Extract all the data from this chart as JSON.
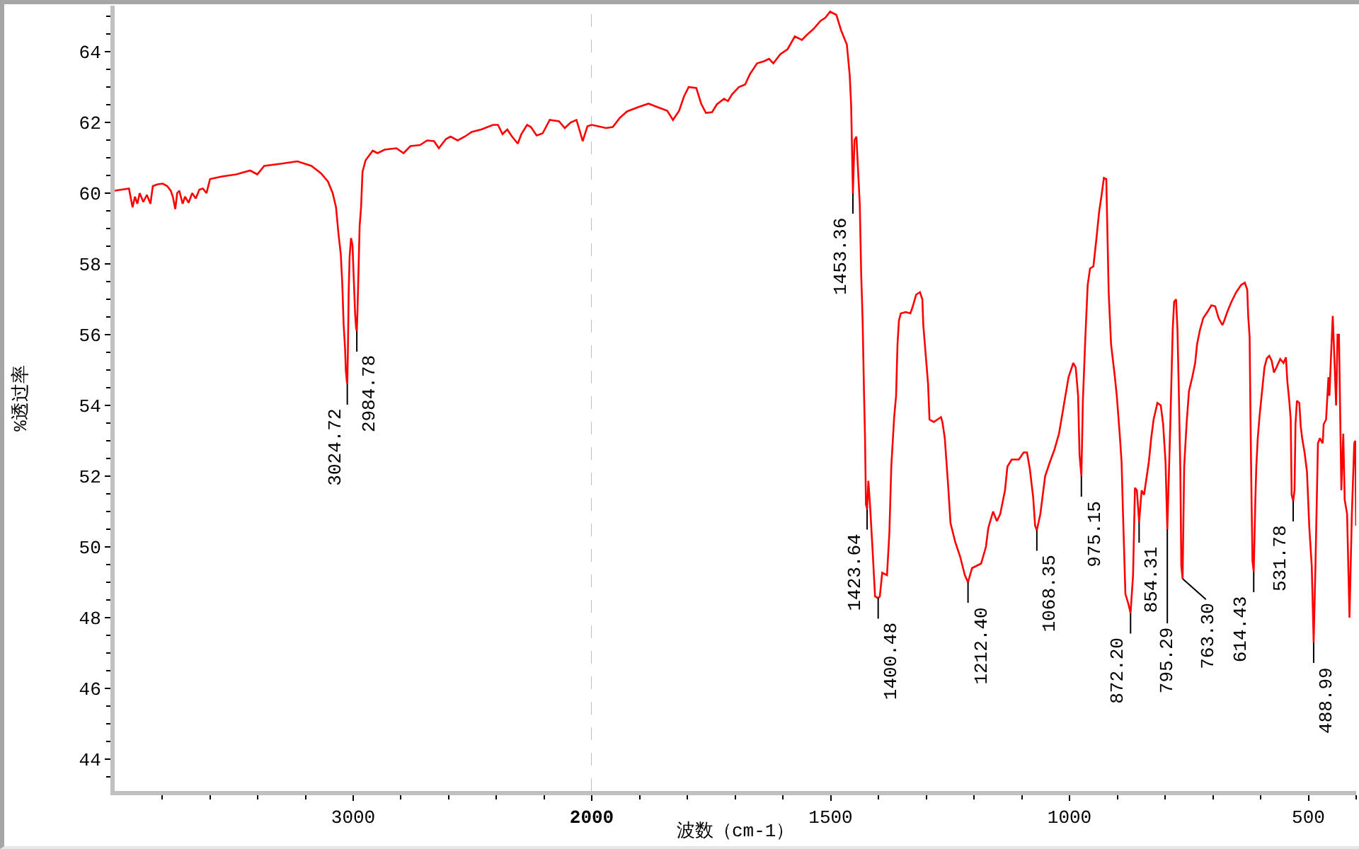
{
  "chart_data": [
    {
      "type": "line",
      "ylabel": "%透过率",
      "xlim": [
        4000,
        2000
      ],
      "ylim": [
        43.1,
        65.3
      ],
      "xticks": [
        {
          "value": 3800,
          "label": null
        },
        {
          "value": 3600,
          "label": null
        },
        {
          "value": 3400,
          "label": null
        },
        {
          "value": 3200,
          "label": null
        },
        3000,
        {
          "value": 2800,
          "label": null
        },
        {
          "value": 2600,
          "label": null
        },
        {
          "value": 2400,
          "label": null
        },
        {
          "value": 2200,
          "label": null
        },
        2000
      ],
      "yticks": [
        {
          "value": 43.5,
          "label": null
        },
        44,
        {
          "value": 44.5,
          "label": null
        },
        {
          "value": 45,
          "label": null
        },
        {
          "value": 45.5,
          "label": null
        },
        46,
        {
          "value": 46.5,
          "label": null
        },
        {
          "value": 47,
          "label": null
        },
        {
          "value": 47.5,
          "label": null
        },
        48,
        {
          "value": 48.5,
          "label": null
        },
        {
          "value": 49,
          "label": null
        },
        {
          "value": 49.5,
          "label": null
        },
        50,
        {
          "value": 50.5,
          "label": null
        },
        {
          "value": 51,
          "label": null
        },
        {
          "value": 51.5,
          "label": null
        },
        52,
        {
          "value": 52.5,
          "label": null
        },
        {
          "value": 53,
          "label": null
        },
        {
          "value": 53.5,
          "label": null
        },
        54,
        {
          "value": 54.5,
          "label": null
        },
        {
          "value": 55,
          "label": null
        },
        {
          "value": 55.5,
          "label": null
        },
        56,
        {
          "value": 56.5,
          "label": null
        },
        {
          "value": 57,
          "label": null
        },
        {
          "value": 57.5,
          "label": null
        },
        58,
        {
          "value": 58.5,
          "label": null
        },
        {
          "value": 59,
          "label": null
        },
        {
          "value": 59.5,
          "label": null
        },
        60,
        {
          "value": 60.5,
          "label": null
        },
        {
          "value": 61,
          "label": null
        },
        {
          "value": 61.5,
          "label": null
        },
        62,
        {
          "value": 62.5,
          "label": null
        },
        {
          "value": 63,
          "label": null
        },
        {
          "value": 63.5,
          "label": null
        },
        64,
        {
          "value": 64.5,
          "label": null
        },
        {
          "value": 65,
          "label": null
        }
      ],
      "series": [
        {
          "color": "#ff0000",
          "x": [
            4000,
            3970,
            3940,
            3925,
            3915,
            3905,
            3895,
            3880,
            3865,
            3850,
            3840,
            3820,
            3798,
            3780,
            3765,
            3756,
            3746,
            3738,
            3729,
            3715,
            3705,
            3690,
            3675,
            3660,
            3645,
            3630,
            3615,
            3600,
            3551,
            3491,
            3432,
            3402,
            3373,
            3294,
            3234,
            3175,
            3135,
            3106,
            3086,
            3072,
            3062,
            3052,
            3046,
            3040,
            3034,
            3031,
            3027,
            3024.72,
            3022,
            3019,
            3015,
            3009,
            3003,
            2997,
            2992,
            2988,
            2984.78,
            2982,
            2978,
            2973,
            2967,
            2961,
            2948,
            2918,
            2898,
            2868,
            2819,
            2789,
            2760,
            2720,
            2690,
            2661,
            2641,
            2611,
            2592,
            2562,
            2532,
            2503,
            2463,
            2414,
            2393,
            2374,
            2354,
            2334,
            2310,
            2295,
            2271,
            2255,
            2231,
            2206,
            2176,
            2137,
            2113,
            2088,
            2064,
            2052,
            2038,
            2018,
            2000
          ],
          "values": [
            60.07,
            60.1,
            60.13,
            59.6,
            59.9,
            59.7,
            60.0,
            59.75,
            59.95,
            59.7,
            60.2,
            60.25,
            60.27,
            60.2,
            60.07,
            59.9,
            59.55,
            60.0,
            60.07,
            59.7,
            59.9,
            59.73,
            60.0,
            59.85,
            60.1,
            60.13,
            60.0,
            60.4,
            60.47,
            60.53,
            60.64,
            60.53,
            60.77,
            60.84,
            60.9,
            60.77,
            60.56,
            60.33,
            60.0,
            59.6,
            58.87,
            58.27,
            57.47,
            56.27,
            55.6,
            55.0,
            54.7,
            54.6,
            55.6,
            57.2,
            58.2,
            58.73,
            58.53,
            57.47,
            56.6,
            56.2,
            56.1,
            56.67,
            57.73,
            59.07,
            59.6,
            60.6,
            60.93,
            61.2,
            61.13,
            61.23,
            61.27,
            61.13,
            61.33,
            61.36,
            61.49,
            61.47,
            61.27,
            61.53,
            61.6,
            61.49,
            61.6,
            61.73,
            61.8,
            61.93,
            61.93,
            61.67,
            61.8,
            61.6,
            61.4,
            61.67,
            61.93,
            61.87,
            61.63,
            61.69,
            62.07,
            62.03,
            61.84,
            62.0,
            62.07,
            61.8,
            61.47,
            61.89,
            61.93
          ]
        }
      ],
      "annotations": [
        {
          "text": "3024.72",
          "x": 3024.72,
          "y": 54.6
        },
        {
          "text": "2984.78",
          "x": 2984.78,
          "y": 56.1
        }
      ],
      "ref_lines": [
        {
          "axis": "x",
          "value": 2000,
          "color": "#c0c0c0",
          "line_style": "dashed"
        }
      ]
    },
    {
      "type": "line",
      "xlabel": "波数（cm-1）",
      "xlim": [
        2000,
        400
      ],
      "ylim": [
        43.1,
        65.3
      ],
      "tick_labels": "x",
      "xticks": [
        {
          "value": 1900,
          "label": null
        },
        {
          "value": 1800,
          "label": null
        },
        {
          "value": 1700,
          "label": null
        },
        {
          "value": 1600,
          "label": null
        },
        1500,
        {
          "value": 1400,
          "label": null
        },
        {
          "value": 1300,
          "label": null
        },
        {
          "value": 1200,
          "label": null
        },
        {
          "value": 1100,
          "label": null
        },
        1000,
        {
          "value": 900,
          "label": null
        },
        {
          "value": 800,
          "label": null
        },
        {
          "value": 700,
          "label": null
        },
        {
          "value": 600,
          "label": null
        },
        500,
        {
          "value": 400,
          "label": null
        }
      ],
      "series": [
        {
          "color": "#ff0000",
          "x": [
            2000,
            1970,
            1956,
            1941,
            1926,
            1901,
            1881,
            1862,
            1842,
            1830,
            1817,
            1807,
            1797,
            1781,
            1771,
            1761,
            1748,
            1738,
            1723,
            1715,
            1706,
            1692,
            1679,
            1669,
            1654,
            1639,
            1629,
            1620,
            1605,
            1590,
            1575,
            1560,
            1550,
            1536,
            1521,
            1511,
            1501,
            1488,
            1478,
            1466,
            1460,
            1457,
            1453.36,
            1450,
            1446,
            1442,
            1439,
            1436,
            1433,
            1430,
            1428,
            1426,
            1423.64,
            1421,
            1417,
            1412,
            1407,
            1400.48,
            1397,
            1392,
            1382,
            1377,
            1373,
            1367,
            1363,
            1360,
            1357,
            1353,
            1343,
            1333,
            1328,
            1321,
            1313,
            1308,
            1306,
            1300,
            1296,
            1293,
            1284,
            1269,
            1266,
            1261,
            1254,
            1249,
            1239,
            1229,
            1219,
            1212.4,
            1204,
            1185,
            1175,
            1170,
            1160,
            1152,
            1145,
            1135,
            1130,
            1121,
            1106,
            1096,
            1089,
            1083,
            1076,
            1072,
            1068.35,
            1061,
            1051,
            1041,
            1032,
            1022,
            1012,
            1002,
            992,
            987,
            982,
            979,
            975.15,
            972,
            967,
            962,
            957,
            950,
            944,
            938,
            933,
            928,
            923,
            918,
            913,
            905,
            901,
            895,
            891,
            888,
            883,
            877,
            872.2,
            867,
            863,
            859,
            854.31,
            849,
            844,
            839,
            834,
            829,
            824,
            816,
            809,
            804,
            799,
            795.29,
            789,
            784,
            781,
            777,
            774,
            771,
            768,
            766,
            763.3,
            760,
            755,
            750,
            743,
            737,
            733,
            727,
            720,
            710,
            703,
            695,
            688,
            680,
            676,
            669,
            661,
            651,
            641,
            633,
            628,
            626,
            623,
            621,
            619,
            617,
            614.43,
            611,
            609,
            606,
            602,
            597,
            592,
            587,
            582,
            577,
            572,
            567,
            559,
            552,
            547,
            544,
            540,
            537,
            535,
            531.78,
            529,
            527,
            524,
            519,
            516,
            513,
            508,
            503,
            498,
            493,
            488.99,
            485,
            480,
            476,
            470,
            468,
            463,
            458,
            456,
            452,
            449,
            446,
            442,
            439,
            436,
            431,
            427,
            424,
            419,
            414,
            409,
            404,
            402,
            400
          ],
          "values": [
            61.93,
            61.84,
            61.87,
            62.13,
            62.31,
            62.44,
            62.53,
            62.43,
            62.33,
            62.07,
            62.33,
            62.73,
            63.0,
            62.97,
            62.53,
            62.27,
            62.29,
            62.51,
            62.67,
            62.6,
            62.8,
            63.0,
            63.07,
            63.36,
            63.67,
            63.73,
            63.8,
            63.67,
            63.93,
            64.07,
            64.43,
            64.33,
            64.47,
            64.64,
            64.87,
            64.96,
            65.13,
            65.04,
            64.6,
            64.2,
            63.33,
            62.47,
            60.0,
            61.5,
            61.6,
            60.5,
            59.7,
            57.7,
            56.4,
            54.3,
            53.1,
            51.2,
            51.07,
            51.87,
            51.07,
            49.87,
            48.6,
            48.55,
            48.6,
            49.27,
            49.2,
            50.4,
            52.27,
            53.67,
            54.27,
            55.73,
            56.4,
            56.6,
            56.64,
            56.6,
            56.8,
            57.13,
            57.2,
            57.0,
            56.27,
            55.27,
            54.6,
            53.6,
            53.53,
            53.67,
            53.53,
            53.07,
            51.73,
            50.67,
            50.13,
            49.73,
            49.2,
            49.0,
            49.4,
            49.53,
            50.0,
            50.53,
            51.0,
            50.73,
            50.93,
            51.6,
            52.27,
            52.47,
            52.47,
            52.67,
            52.67,
            52.2,
            51.4,
            50.6,
            50.47,
            50.93,
            52.0,
            52.4,
            52.73,
            53.2,
            54.0,
            54.8,
            55.2,
            55.07,
            54.27,
            52.6,
            52.0,
            54.13,
            55.87,
            57.4,
            57.87,
            57.93,
            58.67,
            59.47,
            59.93,
            60.43,
            60.4,
            57.2,
            55.73,
            54.8,
            54.27,
            53.2,
            52.4,
            50.93,
            48.67,
            48.4,
            48.13,
            49.2,
            51.67,
            51.6,
            50.7,
            51.6,
            51.47,
            51.93,
            52.4,
            53.07,
            53.6,
            54.07,
            54.0,
            53.47,
            52.4,
            50.5,
            53.47,
            56.13,
            56.93,
            57.0,
            56.13,
            54.27,
            52.13,
            49.47,
            49.1,
            52.27,
            53.47,
            54.4,
            54.8,
            55.2,
            55.73,
            56.13,
            56.47,
            56.67,
            56.83,
            56.8,
            56.47,
            56.27,
            56.4,
            56.67,
            56.93,
            57.2,
            57.4,
            57.47,
            57.27,
            56.53,
            55.93,
            53.47,
            51.33,
            49.6,
            49.3,
            51.33,
            52.27,
            53.07,
            53.73,
            54.4,
            55.07,
            55.33,
            55.4,
            55.27,
            54.93,
            55.07,
            55.31,
            55.2,
            55.36,
            54.67,
            54.13,
            53.6,
            51.47,
            51.3,
            51.6,
            53.47,
            54.13,
            54.07,
            53.4,
            53.07,
            52.67,
            52.13,
            50.53,
            49.47,
            47.3,
            49.6,
            52.93,
            53.07,
            52.93,
            53.47,
            53.6,
            54.8,
            54.27,
            55.6,
            56.53,
            55.47,
            54.0,
            56.0,
            56.0,
            51.6,
            53.2,
            51.33,
            50.93,
            48.0,
            50.93,
            52.93,
            53.0,
            50.6
          ]
        }
      ],
      "annotations": [
        {
          "text": "1453.36",
          "x": 1453.36,
          "y": 60.0
        },
        {
          "text": "1423.64",
          "x": 1423.64,
          "y": 51.07
        },
        {
          "text": "1400.48",
          "x": 1400.48,
          "y": 48.55
        },
        {
          "text": "1212.40",
          "x": 1212.4,
          "y": 49.0
        },
        {
          "text": "1068.35",
          "x": 1068.35,
          "y": 50.47
        },
        {
          "text": "975.15",
          "x": 975.15,
          "y": 52.0
        },
        {
          "text": "872.20",
          "x": 872.2,
          "y": 48.13
        },
        {
          "text": "854.31",
          "x": 854.31,
          "y": 50.7
        },
        {
          "text": "795.29",
          "x": 795.29,
          "y": 50.5
        },
        {
          "text": "763.30",
          "x": 763.3,
          "y": 49.1
        },
        {
          "text": "614.43",
          "x": 614.43,
          "y": 49.3
        },
        {
          "text": "531.78",
          "x": 531.78,
          "y": 51.3
        },
        {
          "text": "488.99",
          "x": 488.99,
          "y": 47.3
        }
      ]
    }
  ]
}
